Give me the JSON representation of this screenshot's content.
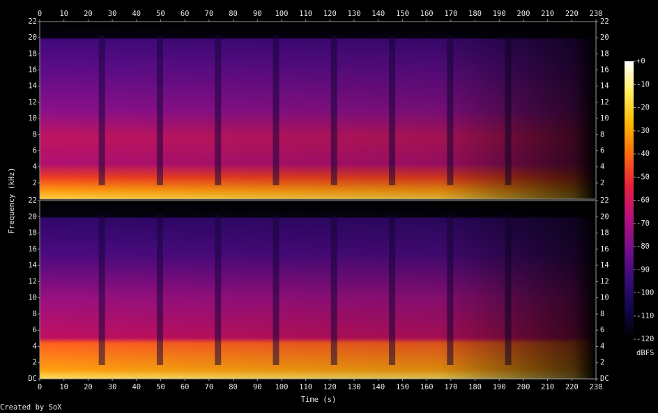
{
  "chart_data": {
    "type": "spectrogram",
    "x_label": "Time (s)",
    "y_label": "Frequency (kHz)",
    "xlim": [
      0,
      230
    ],
    "xticks": [
      0,
      10,
      20,
      30,
      40,
      50,
      60,
      70,
      80,
      90,
      100,
      110,
      120,
      130,
      140,
      150,
      160,
      170,
      180,
      190,
      200,
      210,
      220,
      230
    ],
    "channels": [
      {
        "ylim": [
          0,
          22
        ],
        "yticks": [
          2,
          4,
          6,
          8,
          10,
          12,
          14,
          16,
          18,
          20,
          22
        ]
      },
      {
        "ylim": [
          0,
          22
        ],
        "yticks": [
          {
            "value": 0,
            "label": "DC"
          },
          2,
          4,
          6,
          8,
          10,
          12,
          14,
          16,
          18,
          20,
          22
        ]
      }
    ],
    "colorbar_label": "dBFS",
    "colorbar_lim": [
      -120,
      0
    ],
    "colorbar_ticks": [
      {
        "value": 0,
        "label": "+0"
      },
      -10,
      -20,
      -30,
      -40,
      -50,
      -60,
      -70,
      -80,
      -90,
      -100,
      -110,
      -120
    ],
    "colormap": [
      "#000000",
      "#10084a",
      "#3a0c7a",
      "#7a0f8a",
      "#b8127a",
      "#e8223a",
      "#ff6a10",
      "#ffb800",
      "#ffee60",
      "#ffffff"
    ],
    "credit": "Created by SoX"
  }
}
